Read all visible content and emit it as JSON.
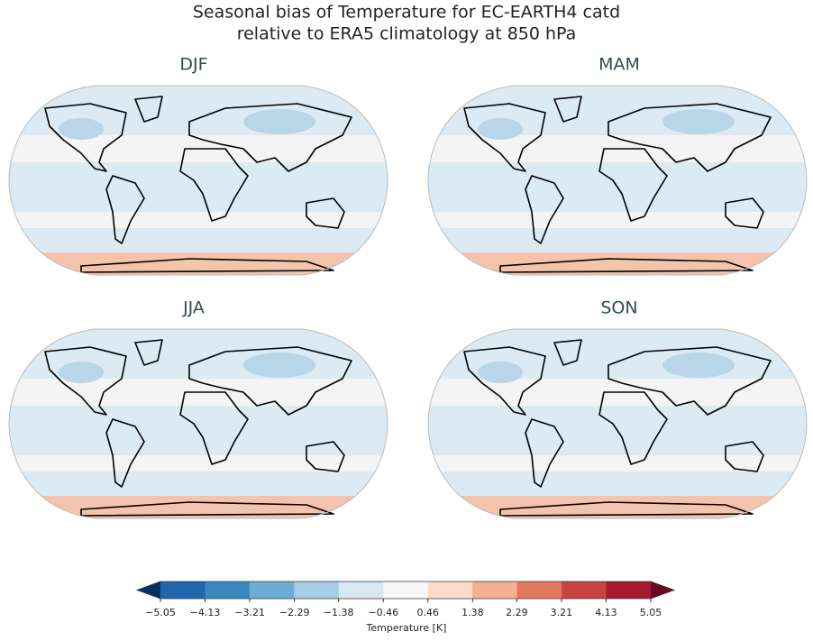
{
  "title_lines": [
    "Seasonal bias of Temperature for EC-EARTH4 catd",
    "relative to ERA5 climatology at 850 hPa"
  ],
  "panels": [
    {
      "title": "DJF"
    },
    {
      "title": "MAM"
    },
    {
      "title": "JJA"
    },
    {
      "title": "SON"
    }
  ],
  "colorbar": {
    "label": "Temperature [K]",
    "ticks": [
      {
        "value": -5.05,
        "label": "−5.05"
      },
      {
        "value": -4.13,
        "label": "−4.13"
      },
      {
        "value": -3.21,
        "label": "−3.21"
      },
      {
        "value": -2.29,
        "label": "−2.29"
      },
      {
        "value": -1.38,
        "label": "−1.38"
      },
      {
        "value": -0.46,
        "label": "−0.46"
      },
      0.46,
      1.38,
      2.29,
      3.21,
      4.13,
      5.05
    ],
    "colors": [
      "#2166ac",
      "#3a87c0",
      "#6aaed6",
      "#a6cde3",
      "#d6e8f2",
      "#f7f7f7",
      "#fbdcc9",
      "#f4b091",
      "#e2795e",
      "#c84444",
      "#a51a2e"
    ],
    "under": "#053061",
    "over": "#6b0a22"
  }
}
